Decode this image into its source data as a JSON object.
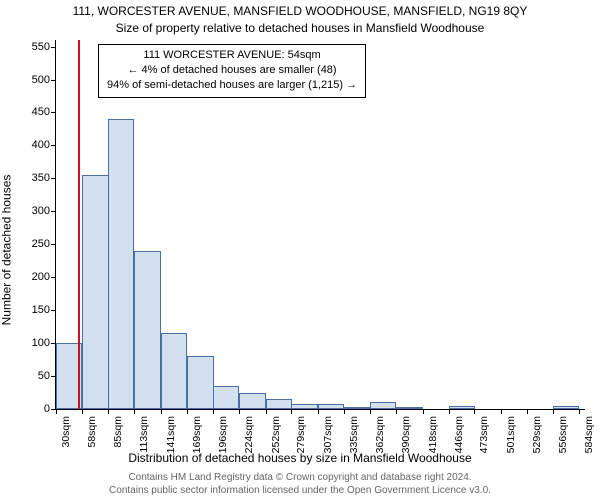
{
  "header": {
    "address": "111, WORCESTER AVENUE, MANSFIELD WOODHOUSE, MANSFIELD, NG19 8QY",
    "subtitle": "Size of property relative to detached houses in Mansfield Woodhouse"
  },
  "axes": {
    "ylabel": "Number of detached houses",
    "xlabel": "Distribution of detached houses by size in Mansfield Woodhouse"
  },
  "attribution": {
    "line1": "Contains HM Land Registry data © Crown copyright and database right 2024.",
    "line2": "Contains public sector information licensed under the Open Government Licence v3.0."
  },
  "annotation": {
    "line1": "111 WORCESTER AVENUE: 54sqm",
    "line2": "← 4% of detached houses are smaller (48)",
    "line3": "94% of semi-detached houses are larger (1,215) →"
  },
  "chart": {
    "type": "histogram",
    "ylim": [
      0,
      560
    ],
    "yticks": [
      0,
      50,
      100,
      150,
      200,
      250,
      300,
      350,
      400,
      450,
      500,
      550
    ],
    "x_tick_positions": [
      30,
      58,
      85,
      113,
      141,
      169,
      196,
      224,
      252,
      279,
      307,
      335,
      362,
      390,
      418,
      446,
      473,
      501,
      529,
      556,
      584
    ],
    "x_tick_labels": [
      "30sqm",
      "58sqm",
      "85sqm",
      "113sqm",
      "141sqm",
      "169sqm",
      "196sqm",
      "224sqm",
      "252sqm",
      "279sqm",
      "307sqm",
      "335sqm",
      "362sqm",
      "390sqm",
      "418sqm",
      "446sqm",
      "473sqm",
      "501sqm",
      "529sqm",
      "556sqm",
      "584sqm"
    ],
    "x_domain": [
      30,
      590
    ],
    "bin_width": 28,
    "bars": [
      {
        "x0": 30,
        "value": 100
      },
      {
        "x0": 58,
        "value": 355
      },
      {
        "x0": 85,
        "value": 440
      },
      {
        "x0": 113,
        "value": 240
      },
      {
        "x0": 141,
        "value": 115
      },
      {
        "x0": 169,
        "value": 80
      },
      {
        "x0": 196,
        "value": 35
      },
      {
        "x0": 224,
        "value": 25
      },
      {
        "x0": 252,
        "value": 15
      },
      {
        "x0": 279,
        "value": 8
      },
      {
        "x0": 307,
        "value": 8
      },
      {
        "x0": 335,
        "value": 3
      },
      {
        "x0": 362,
        "value": 10
      },
      {
        "x0": 390,
        "value": 3
      },
      {
        "x0": 418,
        "value": 0
      },
      {
        "x0": 446,
        "value": 4
      },
      {
        "x0": 473,
        "value": 0
      },
      {
        "x0": 501,
        "value": 0
      },
      {
        "x0": 529,
        "value": 0
      },
      {
        "x0": 556,
        "value": 5
      },
      {
        "x0": 584,
        "value": 0
      }
    ],
    "bar_style": {
      "fill": "#d2e0f0",
      "stroke": "#4a6fa5",
      "stroke_width": 1
    },
    "reference_line": {
      "x": 54,
      "color": "#d01020",
      "width": 2
    },
    "background_color": "#ffffff",
    "title_fontsize": 12,
    "label_fontsize": 12,
    "tick_fontsize": 11
  }
}
